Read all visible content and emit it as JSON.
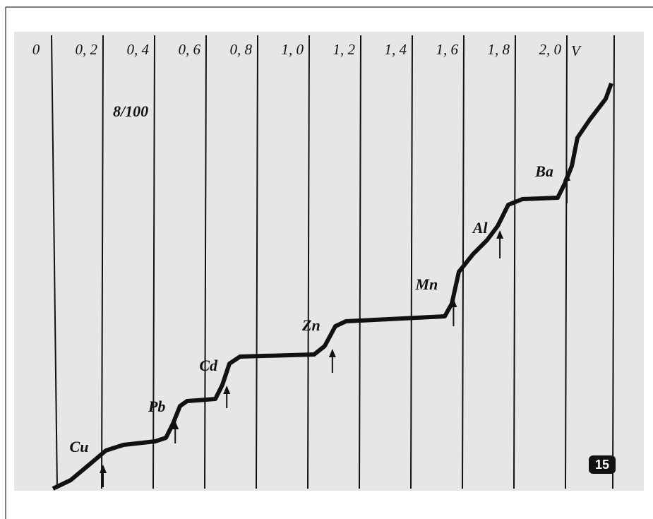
{
  "chart_data": {
    "type": "polarogram",
    "x_label": "V",
    "xlim": [
      0,
      2.2
    ],
    "xticks": [
      0,
      {
        "value": 0.2,
        "label": "0, 2"
      },
      {
        "value": 0.4,
        "label": "0, 4"
      },
      {
        "value": 0.6,
        "label": "0, 6"
      },
      {
        "value": 0.8,
        "label": "0, 8"
      },
      {
        "value": 1.0,
        "label": "1, 0"
      },
      {
        "value": 1.2,
        "label": "1, 2"
      },
      {
        "value": 1.4,
        "label": "1, 4"
      },
      {
        "value": 1.6,
        "label": "1, 6"
      },
      {
        "value": 1.8,
        "label": "1, 8"
      },
      {
        "value": 2.0,
        "label": "2, 0"
      }
    ],
    "grid": true,
    "waves": [
      {
        "label": "Cu",
        "x": 0.2
      },
      {
        "label": "Pb",
        "x": 0.48
      },
      {
        "label": "Cd",
        "x": 0.68
      },
      {
        "label": "Zn",
        "x": 1.09
      },
      {
        "label": "Mn",
        "x": 1.56
      },
      {
        "label": "Al",
        "x": 1.74
      },
      {
        "label": "Ba",
        "x": 2.0
      }
    ],
    "sensitivity": "8/100",
    "figure_number": "15"
  }
}
